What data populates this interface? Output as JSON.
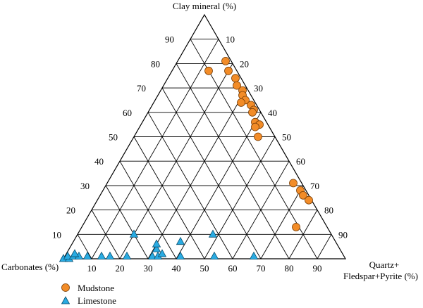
{
  "chart_data": {
    "type": "scatter",
    "subtype": "ternary",
    "axes": {
      "top": {
        "label": "Clay mineral (%)"
      },
      "left": {
        "label": "Carbonates (%)"
      },
      "right": {
        "label_line1": "Quartz+",
        "label_line2": "Fledspar+Pyrite (%)"
      }
    },
    "ticks": {
      "clay": [
        "10",
        "20",
        "30",
        "40",
        "50",
        "60",
        "70",
        "80",
        "90"
      ],
      "quartz": [
        "10",
        "20",
        "30",
        "40",
        "50",
        "60",
        "70",
        "80",
        "90"
      ],
      "carbonates": [
        "10",
        "20",
        "30",
        "40",
        "50",
        "60",
        "70",
        "80",
        "90"
      ]
    },
    "grid": true,
    "legend_position": "bottom-left",
    "series": [
      {
        "name": "Mudstone",
        "marker": "circle",
        "color": "#F28C28",
        "points": [
          {
            "clay": 81,
            "quartz": 17,
            "carbonates": 2
          },
          {
            "clay": 77,
            "quartz": 20,
            "carbonates": 3
          },
          {
            "clay": 77,
            "quartz": 13,
            "carbonates": 10
          },
          {
            "clay": 74,
            "quartz": 24,
            "carbonates": 2
          },
          {
            "clay": 71,
            "quartz": 26,
            "carbonates": 3
          },
          {
            "clay": 69,
            "quartz": 29,
            "carbonates": 2
          },
          {
            "clay": 67,
            "quartz": 30,
            "carbonates": 3
          },
          {
            "clay": 65,
            "quartz": 32,
            "carbonates": 3
          },
          {
            "clay": 64,
            "quartz": 31,
            "carbonates": 5
          },
          {
            "clay": 63,
            "quartz": 35,
            "carbonates": 2
          },
          {
            "clay": 61,
            "quartz": 37,
            "carbonates": 2
          },
          {
            "clay": 60,
            "quartz": 37,
            "carbonates": 3
          },
          {
            "clay": 56,
            "quartz": 40,
            "carbonates": 4
          },
          {
            "clay": 55,
            "quartz": 42,
            "carbonates": 3
          },
          {
            "clay": 54,
            "quartz": 41,
            "carbonates": 5
          },
          {
            "clay": 50,
            "quartz": 44,
            "carbonates": 6
          },
          {
            "clay": 31,
            "quartz": 66,
            "carbonates": 3
          },
          {
            "clay": 28,
            "quartz": 70,
            "carbonates": 2
          },
          {
            "clay": 26,
            "quartz": 72,
            "carbonates": 2
          },
          {
            "clay": 24,
            "quartz": 75,
            "carbonates": 1
          },
          {
            "clay": 13,
            "quartz": 76,
            "carbonates": 11
          }
        ]
      },
      {
        "name": "Limestone",
        "marker": "triangle",
        "color": "#29ABE2",
        "points": [
          {
            "clay": 0,
            "quartz": 0,
            "carbonates": 100
          },
          {
            "clay": 0,
            "quartz": 2,
            "carbonates": 98
          },
          {
            "clay": 1,
            "quartz": 1,
            "carbonates": 98
          },
          {
            "clay": 1,
            "quartz": 3,
            "carbonates": 96
          },
          {
            "clay": 1,
            "quartz": 5,
            "carbonates": 94
          },
          {
            "clay": 2,
            "quartz": 3,
            "carbonates": 95
          },
          {
            "clay": 1,
            "quartz": 8,
            "carbonates": 91
          },
          {
            "clay": 1,
            "quartz": 13,
            "carbonates": 86
          },
          {
            "clay": 1,
            "quartz": 16,
            "carbonates": 83
          },
          {
            "clay": 1,
            "quartz": 22,
            "carbonates": 77
          },
          {
            "clay": 1,
            "quartz": 31,
            "carbonates": 68
          },
          {
            "clay": 1,
            "quartz": 33,
            "carbonates": 66
          },
          {
            "clay": 2,
            "quartz": 34,
            "carbonates": 64
          },
          {
            "clay": 1,
            "quartz": 41,
            "carbonates": 58
          },
          {
            "clay": 1,
            "quartz": 53,
            "carbonates": 46
          },
          {
            "clay": 1,
            "quartz": 67,
            "carbonates": 32
          },
          {
            "clay": 4,
            "quartz": 31,
            "carbonates": 65
          },
          {
            "clay": 6,
            "quartz": 30,
            "carbonates": 64
          },
          {
            "clay": 7,
            "quartz": 38,
            "carbonates": 55
          },
          {
            "clay": 10,
            "quartz": 20,
            "carbonates": 70
          },
          {
            "clay": 10,
            "quartz": 48,
            "carbonates": 42
          }
        ]
      }
    ]
  },
  "legend": {
    "items": [
      {
        "label": "Mudstone",
        "marker": "circle",
        "color": "#F28C28"
      },
      {
        "label": "Limestone",
        "marker": "triangle",
        "color": "#29ABE2"
      }
    ]
  }
}
